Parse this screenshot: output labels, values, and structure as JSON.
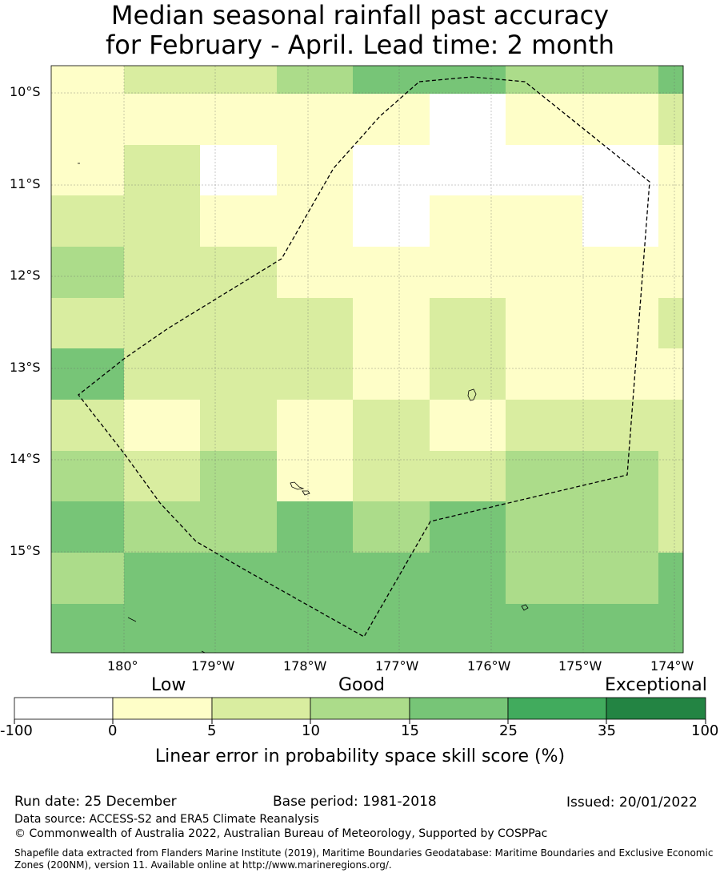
{
  "title": {
    "line1": "Median seasonal rainfall past accuracy",
    "line2": "for February - April. Lead time: 2 month"
  },
  "map": {
    "lat_labels": [
      "10°S",
      "11°S",
      "12°S",
      "13°S",
      "14°S",
      "15°S"
    ],
    "lon_labels": [
      "180°",
      "179°W",
      "178°W",
      "177°W",
      "176°W",
      "175°W",
      "174°W"
    ],
    "grid_cell_classes": [
      [
        1,
        2,
        2,
        3,
        4,
        4,
        3,
        3,
        4
      ],
      [
        1,
        1,
        1,
        1,
        1,
        0,
        1,
        1,
        2
      ],
      [
        1,
        2,
        0,
        1,
        0,
        0,
        0,
        0,
        1
      ],
      [
        2,
        2,
        1,
        1,
        0,
        1,
        1,
        0,
        1
      ],
      [
        3,
        2,
        2,
        1,
        1,
        1,
        1,
        1,
        1
      ],
      [
        2,
        2,
        2,
        2,
        1,
        2,
        1,
        1,
        2
      ],
      [
        4,
        2,
        2,
        2,
        1,
        2,
        1,
        1,
        1
      ],
      [
        2,
        1,
        2,
        1,
        2,
        1,
        2,
        2,
        2
      ],
      [
        3,
        2,
        3,
        1,
        2,
        2,
        3,
        3,
        2
      ],
      [
        4,
        3,
        3,
        4,
        3,
        4,
        3,
        3,
        2
      ],
      [
        3,
        4,
        4,
        4,
        4,
        4,
        3,
        3,
        4
      ],
      [
        4,
        4,
        4,
        4,
        4,
        4,
        4,
        4,
        4
      ]
    ],
    "region_boundary": "dashed"
  },
  "legend": {
    "categories": [
      "Low",
      "Good",
      "Exceptional"
    ],
    "ticks": [
      "-100",
      "0",
      "5",
      "10",
      "15",
      "25",
      "35",
      "100"
    ],
    "colors": [
      "#ffffff",
      "#fefec8",
      "#d9eda0",
      "#acdc8a",
      "#77c577",
      "#41ab5d",
      "#238443"
    ],
    "xlabel": "Linear error in probability space skill score (%)"
  },
  "footer": {
    "run_date": "Run date: 25 December",
    "base_period": "Base period: 1981-2018",
    "issued": "Issued: 20/01/2022",
    "data_source": "Data source: ACCESS-S2 and ERA5 Climate Reanalysis",
    "copyright": "© Commonwealth of Australia 2022, Australian Bureau of Meteorology, Supported by COSPPac",
    "shapefile_line1": "Shapefile data extracted from Flanders Marine Institute (2019), Maritime Boundaries Geodatabase: Maritime Boundaries and Exclusive Economic",
    "shapefile_line2": "Zones (200NM), version 11. Available online at http://www.marineregions.org/."
  }
}
